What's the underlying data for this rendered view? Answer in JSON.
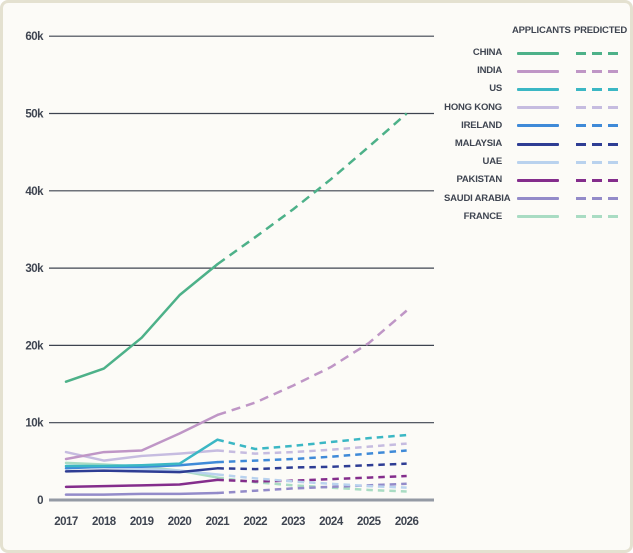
{
  "page": {
    "background": "#fcfbf7",
    "border_color": "#e4e1d0",
    "text_color": "#3f4551",
    "gridline_color": "#3e4450",
    "axis_color": "#949aa4"
  },
  "legend": {
    "applicants_header": "APPLICANTS",
    "predicted_header": "PREDICTED"
  },
  "chart_data": {
    "type": "line",
    "title": "",
    "xlabel": "",
    "ylabel": "",
    "x": [
      2017,
      2018,
      2019,
      2020,
      2021,
      2022,
      2023,
      2024,
      2025,
      2026
    ],
    "ylim": [
      0,
      60000
    ],
    "ytick_labels": [
      "0",
      "10k",
      "20k",
      "30k",
      "40k",
      "50k",
      "60k"
    ],
    "grid": true,
    "legend_position": "right",
    "actual_span_years": [
      2017,
      2021
    ],
    "predicted_span_years": [
      2021,
      2026
    ],
    "series": [
      {
        "name": "CHINA",
        "color": "#4db189",
        "actual": [
          15300,
          17000,
          21000,
          26500,
          30500
        ],
        "predicted": [
          30500,
          34000,
          37600,
          41500,
          45700,
          50000
        ]
      },
      {
        "name": "INDIA",
        "color": "#bf96c6",
        "actual": [
          5300,
          6200,
          6400,
          8600,
          11000
        ],
        "predicted": [
          11000,
          12600,
          14800,
          17200,
          20300,
          24500
        ]
      },
      {
        "name": "US",
        "color": "#3bb7c4",
        "actual": [
          4400,
          4400,
          4500,
          4700,
          7800
        ],
        "predicted": [
          7800,
          6600,
          7000,
          7500,
          8000,
          8400
        ]
      },
      {
        "name": "HONG KONG",
        "color": "#c6bce0",
        "actual": [
          6200,
          5100,
          5700,
          6000,
          6400
        ],
        "predicted": [
          6400,
          6000,
          6200,
          6500,
          6900,
          7300
        ]
      },
      {
        "name": "IRELAND",
        "color": "#3f8ad8",
        "actual": [
          4100,
          4300,
          4300,
          4500,
          4900
        ],
        "predicted": [
          4900,
          5100,
          5300,
          5600,
          6000,
          6400
        ]
      },
      {
        "name": "MALAYSIA",
        "color": "#2e3d94",
        "actual": [
          3700,
          3800,
          3700,
          3600,
          4100
        ],
        "predicted": [
          4100,
          4000,
          4200,
          4300,
          4500,
          4700
        ]
      },
      {
        "name": "UAE",
        "color": "#b9d2ee",
        "actual": [
          4300,
          4200,
          4000,
          3800,
          3300
        ],
        "predicted": [
          3300,
          2800,
          2400,
          2100,
          1800,
          1600
        ]
      },
      {
        "name": "PAKISTAN",
        "color": "#842d8c",
        "actual": [
          1700,
          1800,
          1900,
          2000,
          2600
        ],
        "predicted": [
          2600,
          2400,
          2500,
          2700,
          2900,
          3100
        ]
      },
      {
        "name": "SAUDI ARABIA",
        "color": "#938bc9",
        "actual": [
          700,
          700,
          800,
          800,
          900
        ],
        "predicted": [
          900,
          1200,
          1500,
          1700,
          1900,
          2100
        ]
      },
      {
        "name": "FRANCE",
        "color": "#a9dcc3",
        "actual": [
          4800,
          4600,
          4300,
          3800,
          2900
        ],
        "predicted": [
          2900,
          2300,
          1900,
          1600,
          1300,
          1100
        ]
      }
    ]
  }
}
